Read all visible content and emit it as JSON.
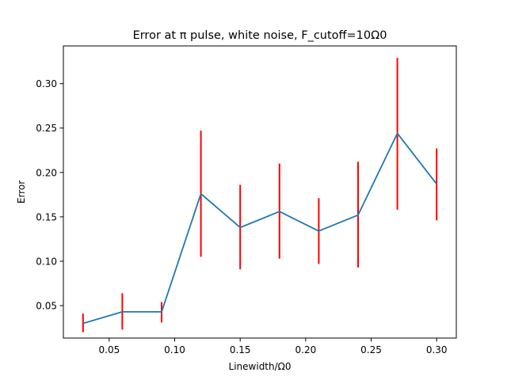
{
  "chart_data": {
    "type": "line",
    "title": "Error at π pulse, white noise, F_cutoff=10Ω0",
    "xlabel": "Linewidth/Ω0",
    "ylabel": "Error",
    "xlim": [
      0.015,
      0.315
    ],
    "ylim": [
      0.0135,
      0.3425
    ],
    "xticks": [
      0.05,
      0.1,
      0.15,
      0.2,
      0.25,
      0.3
    ],
    "xtick_labels": [
      "0.05",
      "0.10",
      "0.15",
      "0.20",
      "0.25",
      "0.30"
    ],
    "yticks": [
      0.05,
      0.1,
      0.15,
      0.2,
      0.25,
      0.3
    ],
    "ytick_labels": [
      "0.05",
      "0.10",
      "0.15",
      "0.20",
      "0.25",
      "0.30"
    ],
    "grid": false,
    "series": [
      {
        "color": "#1f77b4",
        "x": [
          0.03,
          0.06,
          0.09,
          0.12,
          0.15,
          0.18,
          0.21,
          0.24,
          0.27,
          0.3
        ],
        "y": [
          0.03,
          0.043,
          0.043,
          0.176,
          0.138,
          0.156,
          0.134,
          0.152,
          0.244,
          0.187
        ],
        "error_bars": {
          "color": "#ff0000",
          "low": [
            0.02,
            0.023,
            0.031,
            0.105,
            0.091,
            0.103,
            0.097,
            0.093,
            0.158,
            0.146
          ],
          "high": [
            0.041,
            0.064,
            0.054,
            0.247,
            0.186,
            0.21,
            0.171,
            0.212,
            0.329,
            0.227
          ]
        }
      }
    ]
  }
}
